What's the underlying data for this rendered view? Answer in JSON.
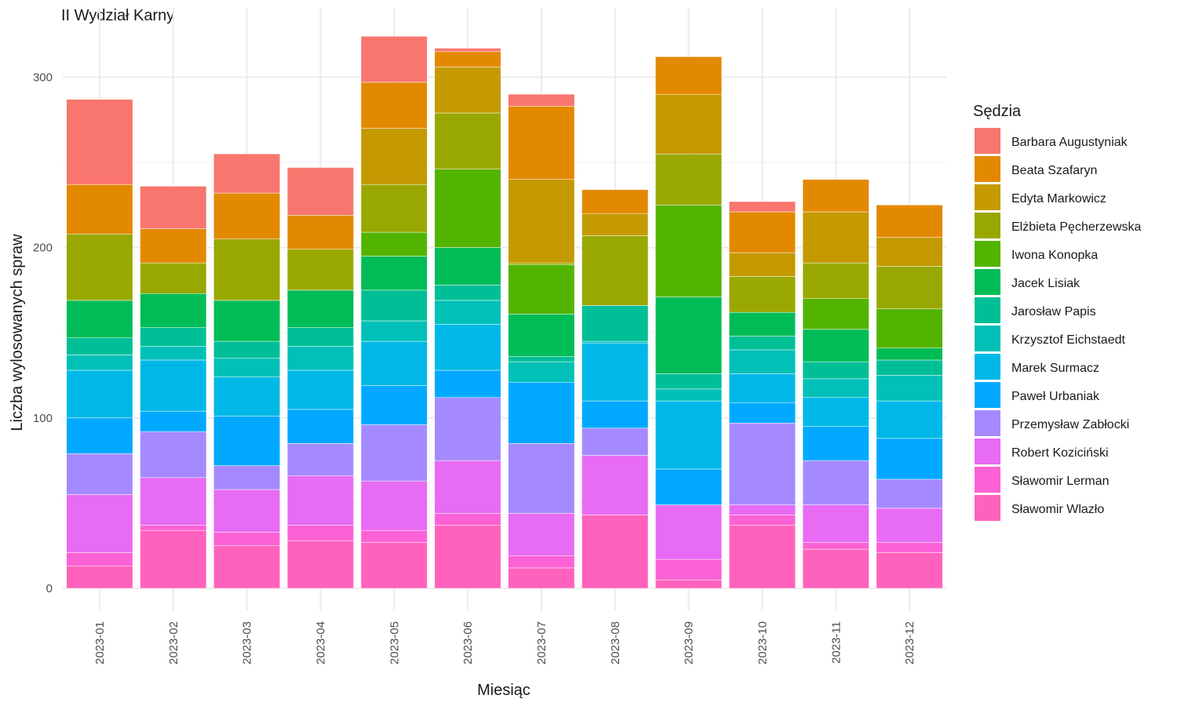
{
  "chart_data": {
    "type": "bar",
    "stacked": true,
    "title": "II Wydział Karny",
    "xlabel": "Miesiąc",
    "ylabel": "Liczba wylosowanych spraw",
    "ylim": [
      0,
      325
    ],
    "y_ticks": [
      0,
      100,
      200,
      300
    ],
    "grid": true,
    "legend_title": "Sędzia",
    "legend_position": "right",
    "categories": [
      "2023-01",
      "2023-02",
      "2023-03",
      "2023-04",
      "2023-05",
      "2023-06",
      "2023-07",
      "2023-08",
      "2023-09",
      "2023-10",
      "2023-11",
      "2023-12"
    ],
    "series": [
      {
        "name": "Sławomir Wlazło",
        "color": "#FF62BC",
        "values": [
          13,
          34,
          25,
          28,
          27,
          37,
          12,
          43,
          5,
          37,
          23,
          21
        ]
      },
      {
        "name": "Sławomir Lerman",
        "color": "#FC61D5",
        "values": [
          8,
          3,
          8,
          9,
          7,
          7,
          7,
          0,
          12,
          6,
          4,
          6
        ]
      },
      {
        "name": "Robert Koziciński",
        "color": "#E76BF3",
        "values": [
          34,
          28,
          25,
          29,
          29,
          31,
          25,
          35,
          32,
          6,
          22,
          20
        ]
      },
      {
        "name": "Przemysław Zabłocki",
        "color": "#A58AFF",
        "values": [
          24,
          27,
          14,
          19,
          33,
          37,
          41,
          16,
          0,
          48,
          26,
          17
        ]
      },
      {
        "name": "Paweł Urbaniak",
        "color": "#00A9FF",
        "values": [
          21,
          12,
          29,
          20,
          23,
          16,
          36,
          16,
          21,
          12,
          20,
          24
        ]
      },
      {
        "name": "Marek Surmacz",
        "color": "#00B8E7",
        "values": [
          28,
          30,
          23,
          23,
          26,
          27,
          0,
          34,
          40,
          17,
          17,
          22
        ]
      },
      {
        "name": "Krzysztof Eichstaedt",
        "color": "#00C0B8",
        "values": [
          9,
          8,
          11,
          14,
          12,
          14,
          12,
          1,
          7,
          14,
          11,
          15
        ]
      },
      {
        "name": "Jarosław Papis",
        "color": "#00BF96",
        "values": [
          10,
          11,
          10,
          11,
          18,
          9,
          3,
          21,
          9,
          8,
          10,
          9
        ]
      },
      {
        "name": "Jacek Lisiak",
        "color": "#00BC56",
        "values": [
          22,
          20,
          24,
          22,
          20,
          22,
          25,
          0,
          45,
          14,
          19,
          7
        ]
      },
      {
        "name": "Iwona Konopka",
        "color": "#53B400",
        "values": [
          0,
          0,
          0,
          0,
          14,
          46,
          29,
          0,
          54,
          0,
          18,
          23
        ]
      },
      {
        "name": "Elżbieta Pęcherzewska",
        "color": "#99A800",
        "values": [
          39,
          18,
          36,
          24,
          28,
          33,
          1,
          41,
          30,
          21,
          21,
          25
        ]
      },
      {
        "name": "Edyta Markowicz",
        "color": "#C49A00",
        "values": [
          0,
          0,
          0,
          0,
          33,
          27,
          49,
          13,
          35,
          14,
          30,
          17
        ]
      },
      {
        "name": "Beata Szafaryn",
        "color": "#E38900",
        "values": [
          29,
          20,
          27,
          20,
          27,
          9,
          43,
          14,
          22,
          24,
          19,
          19
        ]
      },
      {
        "name": "Barbara Augustyniak",
        "color": "#F8766D",
        "values": [
          50,
          25,
          23,
          28,
          27,
          2,
          7,
          0,
          0,
          6,
          0,
          0
        ]
      }
    ]
  }
}
